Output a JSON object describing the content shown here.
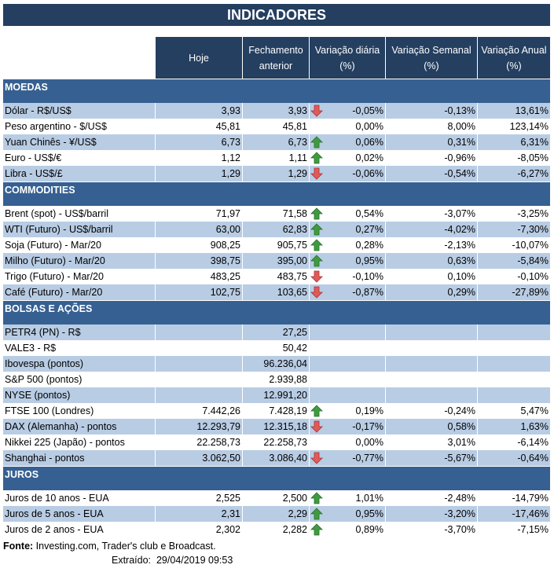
{
  "title": "INDICADORES",
  "columns": [
    "Hoje",
    "Fechamento anterior",
    "Variação diária (%)",
    "Variação Semanal (%)",
    "Variação Anual (%)"
  ],
  "colors": {
    "header": "#243f60",
    "section": "#366092",
    "shaded_row": "#b8cce4",
    "arrow_up": "#3f9b3f",
    "arrow_down": "#e05a5a"
  },
  "sections": [
    {
      "name": "MOEDAS",
      "rows": [
        {
          "label": "Dólar - R$/US$",
          "hoje": "3,93",
          "fech": "3,93",
          "arrow": "down",
          "diaria": "-0,05%",
          "semanal": "-0,13%",
          "anual": "13,61%",
          "shaded": true
        },
        {
          "label": "Peso argentino - $/US$",
          "hoje": "45,81",
          "fech": "45,81",
          "arrow": "",
          "diaria": "0,00%",
          "semanal": "8,00%",
          "anual": "123,14%",
          "shaded": false
        },
        {
          "label": "Yuan Chinês - ¥/US$",
          "hoje": "6,73",
          "fech": "6,73",
          "arrow": "up",
          "diaria": "0,06%",
          "semanal": "0,31%",
          "anual": "6,31%",
          "shaded": true
        },
        {
          "label": "Euro - US$/€",
          "hoje": "1,12",
          "fech": "1,11",
          "arrow": "up",
          "diaria": "0,02%",
          "semanal": "-0,96%",
          "anual": "-8,05%",
          "shaded": false
        },
        {
          "label": "Libra - US$/£",
          "hoje": "1,29",
          "fech": "1,29",
          "arrow": "down",
          "diaria": "-0,06%",
          "semanal": "-0,54%",
          "anual": "-6,27%",
          "shaded": true
        }
      ]
    },
    {
      "name": "COMMODITIES",
      "rows": [
        {
          "label": "Brent (spot) - US$/barril",
          "hoje": "71,97",
          "fech": "71,58",
          "arrow": "up",
          "diaria": "0,54%",
          "semanal": "-3,07%",
          "anual": "-3,25%",
          "shaded": false
        },
        {
          "label": "WTI (Futuro) - US$/barril",
          "hoje": "63,00",
          "fech": "62,83",
          "arrow": "up",
          "diaria": "0,27%",
          "semanal": "-4,02%",
          "anual": "-7,30%",
          "shaded": true
        },
        {
          "label": "Soja (Futuro) - Mar/20",
          "hoje": "908,25",
          "fech": "905,75",
          "arrow": "up",
          "diaria": "0,28%",
          "semanal": "-2,13%",
          "anual": "-10,07%",
          "shaded": false
        },
        {
          "label": "Milho (Futuro) - Mar/20",
          "hoje": "398,75",
          "fech": "395,00",
          "arrow": "up",
          "diaria": "0,95%",
          "semanal": "0,63%",
          "anual": "-5,84%",
          "shaded": true
        },
        {
          "label": "Trigo (Futuro) - Mar/20",
          "hoje": "483,25",
          "fech": "483,75",
          "arrow": "down",
          "diaria": "-0,10%",
          "semanal": "0,10%",
          "anual": "-0,10%",
          "shaded": false
        },
        {
          "label": "Café (Futuro) - Mar/20",
          "hoje": "102,75",
          "fech": "103,65",
          "arrow": "down",
          "diaria": "-0,87%",
          "semanal": "0,29%",
          "anual": "-27,89%",
          "shaded": true
        }
      ]
    },
    {
      "name": "BOLSAS E AÇÕES",
      "rows": [
        {
          "label": "PETR4 (PN) - R$",
          "hoje": "",
          "fech": "27,25",
          "arrow": "",
          "diaria": "",
          "semanal": "",
          "anual": "",
          "shaded": true
        },
        {
          "label": "VALE3 - R$",
          "hoje": "",
          "fech": "50,42",
          "arrow": "",
          "diaria": "",
          "semanal": "",
          "anual": "",
          "shaded": false
        },
        {
          "label": "Ibovespa (pontos)",
          "hoje": "",
          "fech": "96.236,04",
          "arrow": "",
          "diaria": "",
          "semanal": "",
          "anual": "",
          "shaded": true
        },
        {
          "label": "S&P 500 (pontos)",
          "hoje": "",
          "fech": "2.939,88",
          "arrow": "",
          "diaria": "",
          "semanal": "",
          "anual": "",
          "shaded": false
        },
        {
          "label": "NYSE (pontos)",
          "hoje": "",
          "fech": "12.991,20",
          "arrow": "",
          "diaria": "",
          "semanal": "",
          "anual": "",
          "shaded": true
        },
        {
          "label": "FTSE 100 (Londres)",
          "hoje": "7.442,26",
          "fech": "7.428,19",
          "arrow": "up",
          "diaria": "0,19%",
          "semanal": "-0,24%",
          "anual": "5,47%",
          "shaded": false
        },
        {
          "label": "DAX (Alemanha) - pontos",
          "hoje": "12.293,79",
          "fech": "12.315,18",
          "arrow": "down",
          "diaria": "-0,17%",
          "semanal": "0,58%",
          "anual": "1,63%",
          "shaded": true
        },
        {
          "label": "Nikkei 225 (Japão) - pontos",
          "hoje": "22.258,73",
          "fech": "22.258,73",
          "arrow": "",
          "diaria": "0,00%",
          "semanal": "3,01%",
          "anual": "-6,14%",
          "shaded": false
        },
        {
          "label": "Shanghai - pontos",
          "hoje": "3.062,50",
          "fech": "3.086,40",
          "arrow": "down",
          "diaria": "-0,77%",
          "semanal": "-5,67%",
          "anual": "-0,64%",
          "shaded": true
        }
      ]
    },
    {
      "name": "JUROS",
      "rows": [
        {
          "label": "Juros de 10 anos - EUA",
          "hoje": "2,525",
          "fech": "2,500",
          "arrow": "up",
          "diaria": "1,01%",
          "semanal": "-2,48%",
          "anual": "-14,79%",
          "shaded": false
        },
        {
          "label": "Juros de 5 anos - EUA",
          "hoje": "2,31",
          "fech": "2,29",
          "arrow": "up",
          "diaria": "0,95%",
          "semanal": "-3,20%",
          "anual": "-17,46%",
          "shaded": true
        },
        {
          "label": "Juros de 2 anos - EUA",
          "hoje": "2,302",
          "fech": "2,282",
          "arrow": "up",
          "diaria": "0,89%",
          "semanal": "-3,70%",
          "anual": "-7,15%",
          "shaded": false
        }
      ]
    }
  ],
  "footer": {
    "source_label": "Fonte:",
    "source_text": "Investing.com, Trader's club e Broadcast.",
    "extracted_label": "Extraído:",
    "extracted_value": "29/04/2019 09:53"
  }
}
